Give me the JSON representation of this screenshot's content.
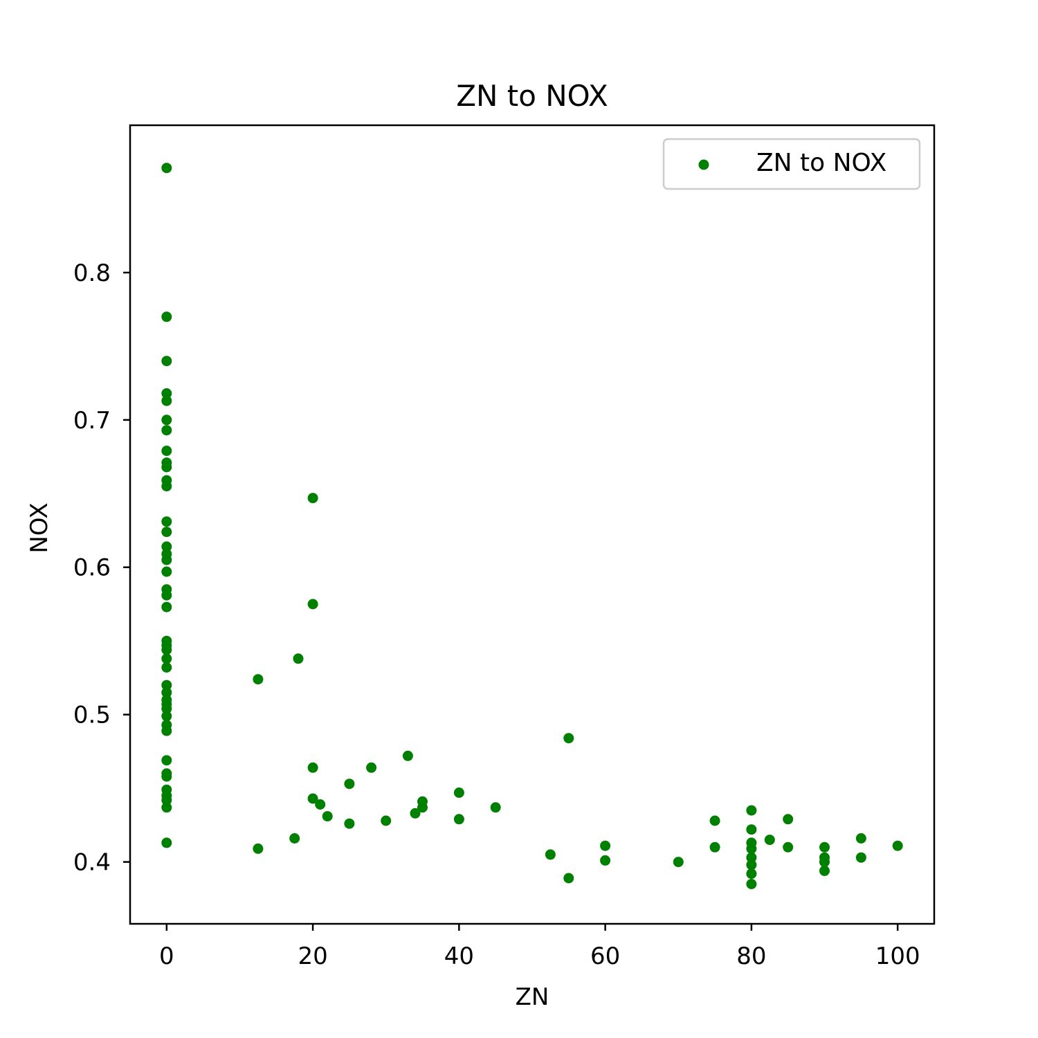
{
  "chart_data": {
    "type": "scatter",
    "title": "ZN to NOX",
    "xlabel": "ZN",
    "ylabel": "NOX",
    "xlim": [
      -5,
      105
    ],
    "ylim": [
      0.358,
      0.9
    ],
    "xticks": [
      0,
      20,
      40,
      60,
      80,
      100
    ],
    "xtick_labels": [
      "0",
      "20",
      "40",
      "60",
      "80",
      "100"
    ],
    "yticks": [
      0.4,
      0.5,
      0.6,
      0.7,
      0.8
    ],
    "ytick_labels": [
      "0.4",
      "0.5",
      "0.6",
      "0.7",
      "0.8"
    ],
    "grid": false,
    "legend": {
      "placement": "top-right",
      "entries": [
        "ZN to NOX"
      ]
    },
    "series": [
      {
        "name": "ZN to NOX",
        "color": "#008000",
        "points": [
          [
            0,
            0.871
          ],
          [
            0,
            0.77
          ],
          [
            0,
            0.74
          ],
          [
            0,
            0.718
          ],
          [
            0,
            0.713
          ],
          [
            0,
            0.7
          ],
          [
            0,
            0.693
          ],
          [
            0,
            0.679
          ],
          [
            0,
            0.671
          ],
          [
            0,
            0.668
          ],
          [
            0,
            0.659
          ],
          [
            0,
            0.655
          ],
          [
            0,
            0.631
          ],
          [
            0,
            0.624
          ],
          [
            0,
            0.614
          ],
          [
            0,
            0.609
          ],
          [
            0,
            0.605
          ],
          [
            0,
            0.597
          ],
          [
            0,
            0.585
          ],
          [
            0,
            0.581
          ],
          [
            0,
            0.573
          ],
          [
            0,
            0.55
          ],
          [
            0,
            0.547
          ],
          [
            0,
            0.544
          ],
          [
            0,
            0.538
          ],
          [
            0,
            0.532
          ],
          [
            0,
            0.52
          ],
          [
            0,
            0.515
          ],
          [
            0,
            0.51
          ],
          [
            0,
            0.507
          ],
          [
            0,
            0.504
          ],
          [
            0,
            0.499
          ],
          [
            0,
            0.493
          ],
          [
            0,
            0.489
          ],
          [
            0,
            0.469
          ],
          [
            0,
            0.46
          ],
          [
            0,
            0.458
          ],
          [
            0,
            0.449
          ],
          [
            0,
            0.445
          ],
          [
            0,
            0.442
          ],
          [
            0,
            0.437
          ],
          [
            0,
            0.413
          ],
          [
            12.5,
            0.524
          ],
          [
            12.5,
            0.409
          ],
          [
            17.5,
            0.416
          ],
          [
            18,
            0.538
          ],
          [
            20,
            0.647
          ],
          [
            20,
            0.575
          ],
          [
            20,
            0.464
          ],
          [
            20,
            0.443
          ],
          [
            21,
            0.439
          ],
          [
            22,
            0.431
          ],
          [
            25,
            0.453
          ],
          [
            25,
            0.426
          ],
          [
            28,
            0.464
          ],
          [
            30,
            0.428
          ],
          [
            33,
            0.472
          ],
          [
            34,
            0.433
          ],
          [
            35,
            0.441
          ],
          [
            35,
            0.437
          ],
          [
            40,
            0.447
          ],
          [
            40,
            0.429
          ],
          [
            45,
            0.437
          ],
          [
            52.5,
            0.405
          ],
          [
            55,
            0.484
          ],
          [
            55,
            0.389
          ],
          [
            60,
            0.411
          ],
          [
            60,
            0.401
          ],
          [
            70,
            0.4
          ],
          [
            75,
            0.428
          ],
          [
            75,
            0.41
          ],
          [
            80,
            0.435
          ],
          [
            80,
            0.422
          ],
          [
            80,
            0.413
          ],
          [
            80,
            0.409
          ],
          [
            80,
            0.403
          ],
          [
            80,
            0.398
          ],
          [
            80,
            0.392
          ],
          [
            80,
            0.385
          ],
          [
            82.5,
            0.415
          ],
          [
            85,
            0.429
          ],
          [
            85,
            0.41
          ],
          [
            90,
            0.41
          ],
          [
            90,
            0.403
          ],
          [
            90,
            0.4
          ],
          [
            90,
            0.394
          ],
          [
            95,
            0.416
          ],
          [
            95,
            0.403
          ],
          [
            100,
            0.411
          ]
        ]
      }
    ]
  }
}
